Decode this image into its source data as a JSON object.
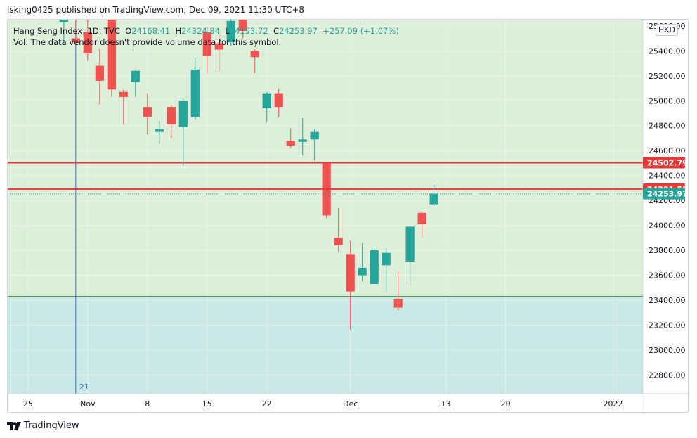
{
  "header": {
    "published_text": "lsking0425 published on TradingView.com, Dec 09, 2021 11:30 UTC+8"
  },
  "legend": {
    "symbol": "Hang Seng Index, 1D, TVC",
    "open_label": "O",
    "open": "24168.41",
    "high_label": "H",
    "high": "24324.84",
    "low_label": "L",
    "low": "24153.72",
    "close_label": "C",
    "close": "24253.97",
    "change": "+257.09 (+1.07%)",
    "volume_note": "Vol: The data vendor doesn't provide volume data for this symbol."
  },
  "currency": "HKD",
  "footer": {
    "brand": "TradingView"
  },
  "colors": {
    "up": "#26a69a",
    "down": "#ef5350",
    "upper_zone": "#ddeeda",
    "lower_zone": "#cae9e6",
    "resistance_line": "#e53935",
    "zone_line": "#2e8b3d",
    "vertical_line": "#3b6fd0"
  },
  "chart_data": {
    "type": "candlestick",
    "ylim": [
      22650,
      25650
    ],
    "y_ticks": [
      22800,
      23000,
      23200,
      23400,
      23600,
      23800,
      24000,
      24200,
      24400,
      24600,
      24800,
      25000,
      25200,
      25400,
      25600
    ],
    "y_tick_labels": [
      "22800.00",
      "23000.00",
      "23200.00",
      "23400.00",
      "23600.00",
      "23800.00",
      "24000.00",
      "24200.00",
      "24400.00",
      "24600.00",
      "24800.00",
      "25000.00",
      "25200.00",
      "25400.00",
      "25600.00"
    ],
    "x_ticks": [
      {
        "label": "25",
        "index": -3
      },
      {
        "label": "Nov",
        "index": 2
      },
      {
        "label": "8",
        "index": 7
      },
      {
        "label": "15",
        "index": 12
      },
      {
        "label": "22",
        "index": 17
      },
      {
        "label": "Dec",
        "index": 24
      },
      {
        "label": "13",
        "index": 32
      },
      {
        "label": "20",
        "index": 37
      },
      {
        "label": "2022",
        "index": 46
      }
    ],
    "x_range": [
      -4.7,
      48.5
    ],
    "candles": [
      {
        "o": 25630,
        "h": 25700,
        "l": 25460,
        "c": 25680
      },
      {
        "o": 25500,
        "h": 25660,
        "l": 25440,
        "c": 25470
      },
      {
        "o": 25550,
        "h": 25690,
        "l": 25320,
        "c": 25380
      },
      {
        "o": 25280,
        "h": 25420,
        "l": 24970,
        "c": 25160
      },
      {
        "o": 25710,
        "h": 25740,
        "l": 25030,
        "c": 25090
      },
      {
        "o": 25070,
        "h": 25090,
        "l": 24810,
        "c": 25030
      },
      {
        "o": 25150,
        "h": 25240,
        "l": 25030,
        "c": 25240
      },
      {
        "o": 24950,
        "h": 25060,
        "l": 24730,
        "c": 24870
      },
      {
        "o": 24750,
        "h": 24840,
        "l": 24650,
        "c": 24770
      },
      {
        "o": 24950,
        "h": 24960,
        "l": 24700,
        "c": 24810
      },
      {
        "o": 24790,
        "h": 25010,
        "l": 24480,
        "c": 25000
      },
      {
        "o": 24870,
        "h": 25350,
        "l": 24850,
        "c": 25250
      },
      {
        "o": 25550,
        "h": 25590,
        "l": 25220,
        "c": 25360
      },
      {
        "o": 25460,
        "h": 25540,
        "l": 25230,
        "c": 25410
      },
      {
        "o": 25470,
        "h": 25680,
        "l": 25440,
        "c": 25640
      },
      {
        "o": 25760,
        "h": 25780,
        "l": 25500,
        "c": 25560
      },
      {
        "o": 25400,
        "h": 25410,
        "l": 25220,
        "c": 25350
      },
      {
        "o": 24940,
        "h": 25070,
        "l": 24830,
        "c": 25060
      },
      {
        "o": 25060,
        "h": 25100,
        "l": 24870,
        "c": 24950
      },
      {
        "o": 24680,
        "h": 24780,
        "l": 24620,
        "c": 24640
      },
      {
        "o": 24670,
        "h": 24860,
        "l": 24560,
        "c": 24690
      },
      {
        "o": 24690,
        "h": 24770,
        "l": 24520,
        "c": 24750
      },
      {
        "o": 24500,
        "h": 24500,
        "l": 24060,
        "c": 24080
      },
      {
        "o": 23900,
        "h": 24140,
        "l": 23790,
        "c": 23840
      },
      {
        "o": 23770,
        "h": 23880,
        "l": 23160,
        "c": 23470
      },
      {
        "o": 23600,
        "h": 23860,
        "l": 23550,
        "c": 23660
      },
      {
        "o": 23530,
        "h": 23820,
        "l": 23530,
        "c": 23800
      },
      {
        "o": 23680,
        "h": 23820,
        "l": 23460,
        "c": 23780
      },
      {
        "o": 23410,
        "h": 23630,
        "l": 23320,
        "c": 23340
      },
      {
        "o": 23710,
        "h": 23980,
        "l": 23520,
        "c": 23990
      },
      {
        "o": 24100,
        "h": 24110,
        "l": 23910,
        "c": 24010
      },
      {
        "o": 24168.41,
        "h": 24324.84,
        "l": 24153.72,
        "c": 24253.97
      }
    ],
    "horizontal_lines": [
      {
        "name": "24502.79",
        "value": 24502.79,
        "label": "24502.79"
      },
      {
        "name": "24291.58",
        "value": 24291.58,
        "label": "24291.58"
      }
    ],
    "last_price": {
      "value": 24253.97,
      "label": "24253.97"
    },
    "zone_boundary": 23430,
    "vertical_marker": {
      "index": 1,
      "label": "21"
    }
  }
}
